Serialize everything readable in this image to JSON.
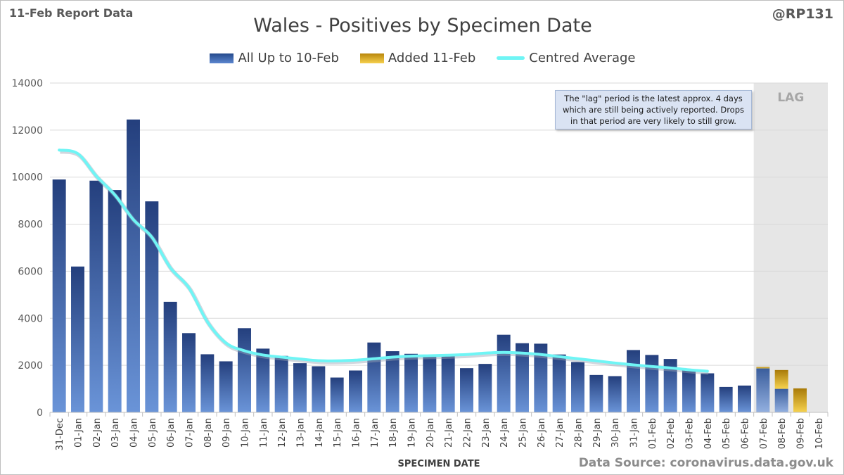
{
  "header": {
    "report_label": "11-Feb Report Data",
    "handle": "@RP131",
    "source": "Data Source: coronavirus.data.gov.uk"
  },
  "chart_data": {
    "type": "bar",
    "title": "Wales - Positives by Specimen Date",
    "xlabel": "SPECIMEN DATE",
    "ylabel": "",
    "ylim": [
      0,
      14000
    ],
    "yticks": [
      0,
      2000,
      4000,
      6000,
      8000,
      10000,
      12000,
      14000
    ],
    "grid": true,
    "legend_position": "top-center",
    "categories": [
      "31-Dec",
      "01-Jan",
      "02-Jan",
      "03-Jan",
      "04-Jan",
      "05-Jan",
      "06-Jan",
      "07-Jan",
      "08-Jan",
      "09-Jan",
      "10-Jan",
      "11-Jan",
      "12-Jan",
      "13-Jan",
      "14-Jan",
      "15-Jan",
      "16-Jan",
      "17-Jan",
      "18-Jan",
      "19-Jan",
      "20-Jan",
      "21-Jan",
      "22-Jan",
      "23-Jan",
      "24-Jan",
      "25-Jan",
      "26-Jan",
      "27-Jan",
      "28-Jan",
      "29-Jan",
      "30-Jan",
      "31-Jan",
      "01-Feb",
      "02-Feb",
      "03-Feb",
      "04-Feb",
      "05-Feb",
      "06-Feb",
      "07-Feb",
      "08-Feb",
      "09-Feb",
      "10-Feb"
    ],
    "series": [
      {
        "name": "All Up to 10-Feb",
        "type": "bar",
        "color": "#3a64b0",
        "values": [
          9900,
          6200,
          9850,
          9450,
          12450,
          8970,
          4700,
          3370,
          2470,
          2170,
          3580,
          2710,
          2400,
          2090,
          1960,
          1480,
          1780,
          2970,
          2600,
          2490,
          2370,
          2400,
          1880,
          2060,
          3300,
          2940,
          2920,
          2460,
          2140,
          1590,
          1540,
          2650,
          2440,
          2270,
          1780,
          1660,
          1080,
          1140,
          1870,
          1000,
          0,
          0
        ]
      },
      {
        "name": "Added 11-Feb",
        "type": "bar-stacked",
        "color": "#e0b020",
        "values": [
          0,
          0,
          0,
          0,
          0,
          0,
          0,
          0,
          0,
          0,
          0,
          0,
          0,
          0,
          0,
          0,
          0,
          0,
          0,
          0,
          0,
          0,
          0,
          0,
          0,
          0,
          0,
          0,
          0,
          0,
          0,
          0,
          0,
          0,
          0,
          0,
          0,
          0,
          60,
          800,
          1020,
          0
        ]
      },
      {
        "name": "Centred Average",
        "type": "line",
        "color": "#6ff5f5",
        "values": [
          11150,
          11000,
          10050,
          9250,
          8200,
          7450,
          6150,
          5300,
          3850,
          2950,
          2620,
          2440,
          2350,
          2270,
          2200,
          2190,
          2220,
          2280,
          2350,
          2390,
          2410,
          2430,
          2460,
          2520,
          2550,
          2520,
          2460,
          2370,
          2280,
          2190,
          2100,
          2020,
          1950,
          1890,
          1810,
          1750,
          null,
          null,
          null,
          null,
          null,
          null
        ]
      }
    ],
    "lag_region": {
      "label": "LAG",
      "start_category": "07-Feb",
      "end_category": "10-Feb",
      "note": "The \"lag\" period is the latest approx. 4 days which are still being actively reported. Drops in that period are very likely to still grow."
    }
  }
}
